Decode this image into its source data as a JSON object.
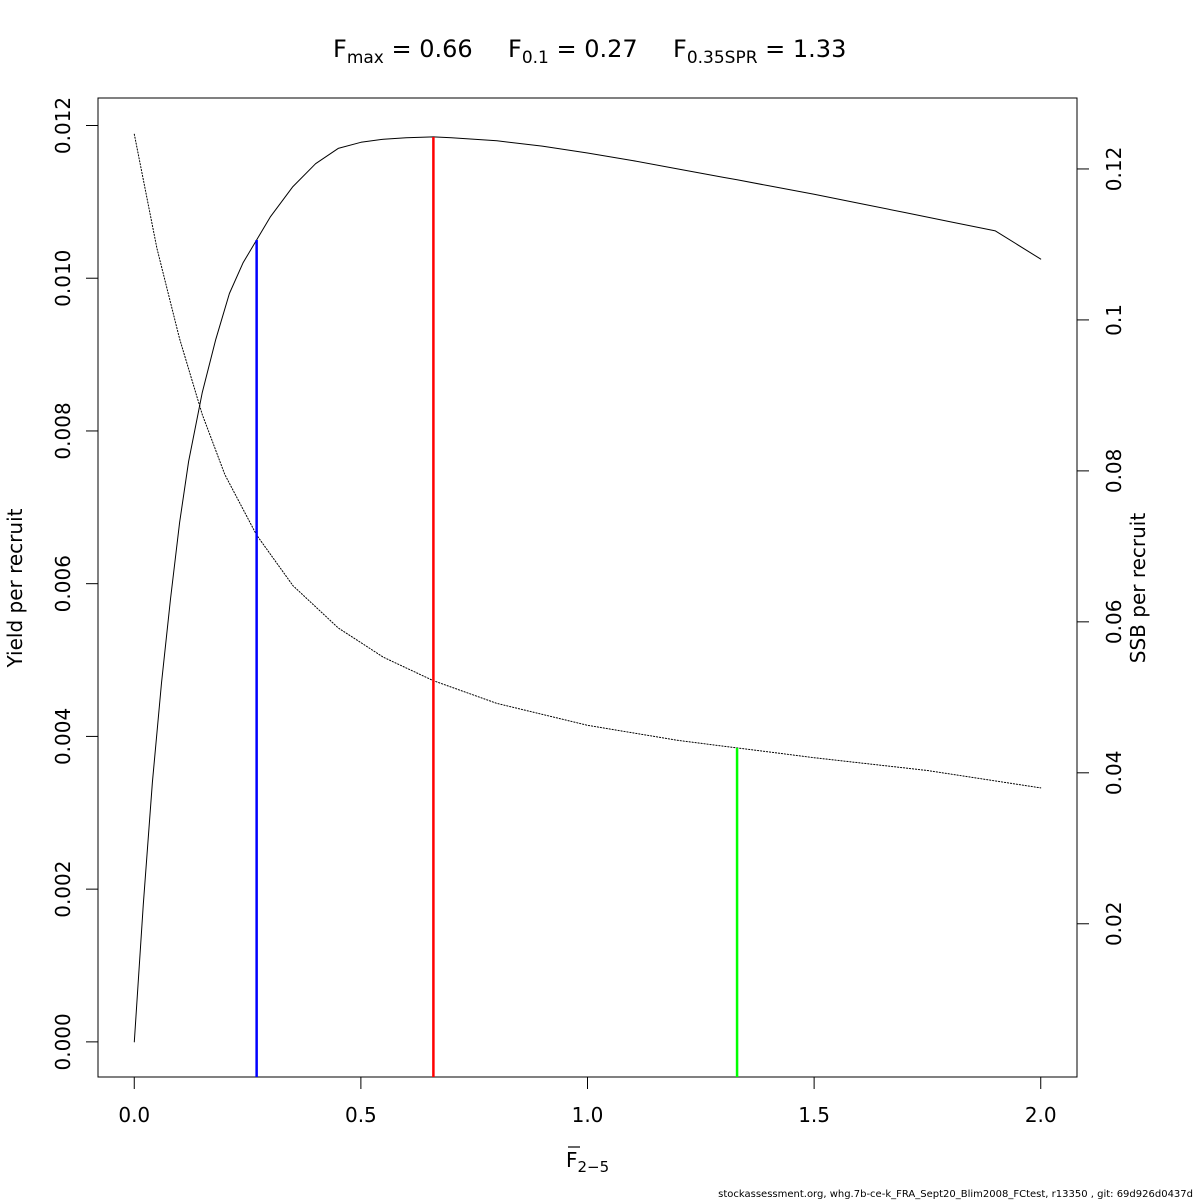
{
  "chart_data": {
    "type": "line",
    "title": {
      "parts": [
        {
          "base": "F",
          "sub": "max",
          "value": "0.66"
        },
        {
          "base": "F",
          "sub": "0.1",
          "value": "0.27"
        },
        {
          "base": "F",
          "sub": "0.35SPR",
          "value": "1.33"
        }
      ]
    },
    "xlabel": {
      "base": "F",
      "sub": "2−5"
    },
    "ylabel_left": "Yield per recruit",
    "ylabel_right": "SSB per recruit",
    "xlim": [
      -0.08,
      2.08
    ],
    "ylim_left": [
      -0.00046,
      0.01236
    ],
    "ylim_right": [
      -0.0003,
      0.1294
    ],
    "x_ticks": [
      0,
      0.5,
      1,
      1.5,
      2
    ],
    "x_tick_labels": [
      "0.0",
      "0.5",
      "1.0",
      "1.5",
      "2.0"
    ],
    "y_left_ticks": [
      0,
      0.002,
      0.004,
      0.006,
      0.008,
      0.01,
      0.012
    ],
    "y_left_tick_labels": [
      "0.000",
      "0.002",
      "0.004",
      "0.006",
      "0.008",
      "0.010",
      "0.012"
    ],
    "y_right_ticks": [
      0.02,
      0.04,
      0.06,
      0.08,
      0.1,
      0.12
    ],
    "y_right_tick_labels": [
      "0.02",
      "0.04",
      "0.06",
      "0.08",
      "0.1",
      "0.12"
    ],
    "grid": false,
    "series": [
      {
        "axis": "left",
        "style": "solid",
        "color": "#000000",
        "x": [
          0,
          0.02,
          0.04,
          0.06,
          0.08,
          0.1,
          0.12,
          0.15,
          0.18,
          0.21,
          0.24,
          0.27,
          0.3,
          0.35,
          0.4,
          0.45,
          0.5,
          0.55,
          0.6,
          0.66,
          0.7,
          0.8,
          0.9,
          1.0,
          1.1,
          1.2,
          1.3,
          1.33,
          1.4,
          1.5,
          1.6,
          1.7,
          1.8,
          1.9,
          2.0
        ],
        "y": [
          0.0,
          0.0018,
          0.0034,
          0.0047,
          0.0058,
          0.0068,
          0.0076,
          0.0085,
          0.0092,
          0.0098,
          0.0102,
          0.0105,
          0.0108,
          0.0112,
          0.0115,
          0.0117,
          0.01178,
          0.01182,
          0.01184,
          0.01185,
          0.01184,
          0.0118,
          0.01173,
          0.01164,
          0.01154,
          0.01143,
          0.01132,
          0.01129,
          0.01121,
          0.0111,
          0.01098,
          0.01086,
          0.01074,
          0.01062,
          0.01025
        ]
      },
      {
        "axis": "right",
        "style": "dotted",
        "color": "#000000",
        "x": [
          0,
          0.05,
          0.1,
          0.15,
          0.2,
          0.27,
          0.35,
          0.45,
          0.55,
          0.66,
          0.8,
          1.0,
          1.2,
          1.33,
          1.5,
          1.75,
          2.0
        ],
        "y": [
          0.1246,
          0.1095,
          0.0975,
          0.0875,
          0.0795,
          0.0715,
          0.0648,
          0.0592,
          0.0553,
          0.0522,
          0.0492,
          0.0463,
          0.0443,
          0.0433,
          0.042,
          0.0403,
          0.038
        ]
      }
    ],
    "reference_lines": [
      {
        "name": "F0.1",
        "x": 0.27,
        "axis": "left",
        "y_top": 0.0105,
        "color": "#0000ff"
      },
      {
        "name": "Fmax",
        "x": 0.66,
        "axis": "left",
        "y_top": 0.01185,
        "color": "#ff0000"
      },
      {
        "name": "F0.35SPR",
        "x": 1.33,
        "axis": "right",
        "y_top": 0.0433,
        "color": "#00ff00"
      }
    ]
  },
  "footer_text": "stockassessment.org, whg.7b-ce-k_FRA_Sept20_Blim2008_FCtest, r13350 , git: 69d926d0437d"
}
